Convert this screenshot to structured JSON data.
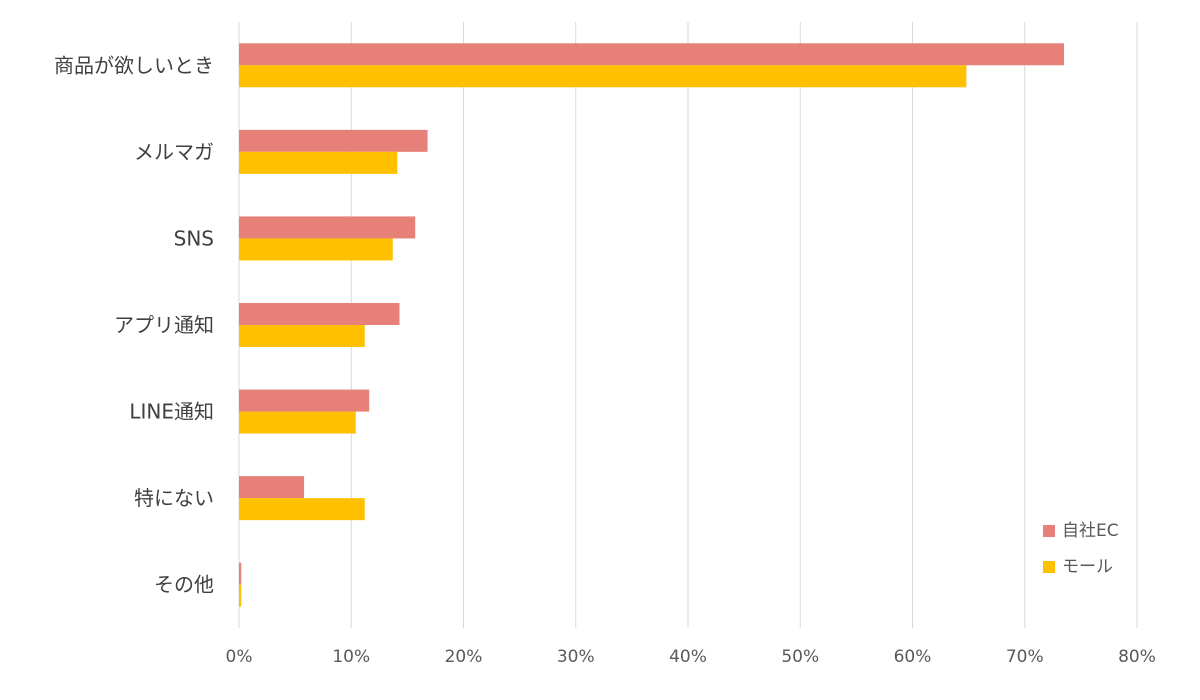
{
  "chart_data": {
    "type": "bar",
    "orientation": "horizontal",
    "categories": [
      "商品が欲しいとき",
      "メルマガ",
      "SNS",
      "アプリ通知",
      "LINE通知",
      "特にない",
      "その他"
    ],
    "series": [
      {
        "name": "自社EC",
        "color": "#e8807a",
        "values": [
          73.5,
          16.8,
          15.7,
          14.3,
          11.6,
          5.8,
          0.2
        ]
      },
      {
        "name": "モール",
        "color": "#ffc000",
        "values": [
          64.8,
          14.1,
          13.7,
          11.2,
          10.4,
          11.2,
          0.2
        ]
      }
    ],
    "xlim": [
      0,
      80
    ],
    "xticks": [
      0,
      10,
      20,
      30,
      40,
      50,
      60,
      70,
      80
    ],
    "tick_labels": [
      "0%",
      "10%",
      "20%",
      "30%",
      "40%",
      "50%",
      "60%",
      "70%",
      "80%"
    ],
    "grid": true,
    "legend_position": "bottom-right"
  }
}
